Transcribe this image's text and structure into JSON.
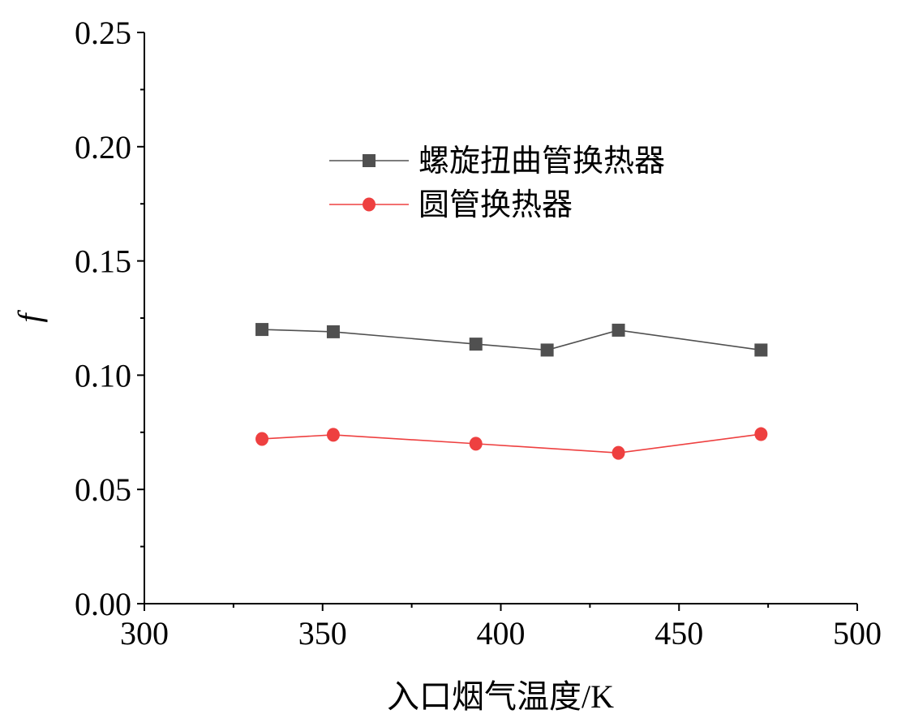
{
  "chart_data": {
    "type": "line",
    "title": "",
    "xlabel": "入口烟气温度/K",
    "ylabel": "f",
    "xlim": [
      300,
      500
    ],
    "ylim": [
      0,
      0.25
    ],
    "xticks": [
      "300",
      "350",
      "400",
      "450",
      "500"
    ],
    "yticks": [
      "0.00",
      "0.05",
      "0.10",
      "0.15",
      "0.20",
      "0.25"
    ],
    "grid": false,
    "legend_position": "upper-center",
    "series": [
      {
        "name": "螺旋扭曲管换热器",
        "marker": "square",
        "color": "#505050",
        "x": [
          333,
          353,
          393,
          413,
          433,
          473
        ],
        "y": [
          0.12,
          0.119,
          0.1136,
          0.111,
          0.1197,
          0.111
        ]
      },
      {
        "name": "圆管换热器",
        "marker": "circle",
        "color": "#EE4040",
        "x": [
          333,
          353,
          393,
          433,
          473
        ],
        "y": [
          0.0721,
          0.0739,
          0.07,
          0.066,
          0.0742
        ]
      }
    ]
  }
}
